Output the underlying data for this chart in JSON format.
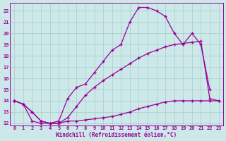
{
  "xlabel": "Windchill (Refroidissement éolien,°C)",
  "background_color": "#cce8e8",
  "line_color": "#990099",
  "xlim_min": -0.5,
  "xlim_max": 23.5,
  "ylim_min": 11.8,
  "ylim_max": 22.7,
  "xticks": [
    0,
    1,
    2,
    3,
    4,
    5,
    6,
    7,
    8,
    9,
    10,
    11,
    12,
    13,
    14,
    15,
    16,
    17,
    18,
    19,
    20,
    21,
    22,
    23
  ],
  "yticks": [
    12,
    13,
    14,
    15,
    16,
    17,
    18,
    19,
    20,
    21,
    22
  ],
  "line1_x": [
    0,
    1,
    2,
    3,
    4,
    5,
    6,
    7,
    8,
    9,
    10,
    11,
    12,
    13,
    14,
    15,
    16,
    17,
    18,
    19,
    20,
    21,
    22,
    23
  ],
  "line1_y": [
    14.0,
    13.7,
    13.0,
    12.2,
    12.0,
    12.0,
    12.2,
    12.2,
    12.3,
    12.4,
    12.5,
    12.6,
    12.8,
    13.0,
    13.3,
    13.5,
    13.7,
    13.9,
    14.0,
    14.0,
    14.0,
    14.0,
    14.0,
    14.0
  ],
  "line2_x": [
    0,
    1,
    2,
    3,
    4,
    5,
    6,
    7,
    8,
    9,
    10,
    11,
    12,
    13,
    14,
    15,
    16,
    17,
    18,
    19,
    20,
    21,
    22,
    23
  ],
  "line2_y": [
    14.0,
    13.7,
    13.0,
    12.2,
    12.0,
    12.0,
    12.5,
    13.5,
    14.5,
    15.2,
    15.8,
    16.3,
    16.8,
    17.3,
    17.8,
    18.2,
    18.5,
    18.8,
    19.0,
    19.1,
    19.2,
    19.3,
    14.2,
    14.0
  ],
  "line3_x": [
    0,
    1,
    2,
    3,
    4,
    5,
    6,
    7,
    8,
    9,
    10,
    11,
    12,
    13,
    14,
    15,
    16,
    17,
    18,
    19,
    20,
    21,
    22
  ],
  "line3_y": [
    14.0,
    13.7,
    12.2,
    12.0,
    12.0,
    12.2,
    14.2,
    15.2,
    15.5,
    16.5,
    17.5,
    18.5,
    19.0,
    21.0,
    22.3,
    22.3,
    22.0,
    21.5,
    20.0,
    19.0,
    20.0,
    19.0,
    15.0
  ],
  "grid_color": "#aacccc"
}
